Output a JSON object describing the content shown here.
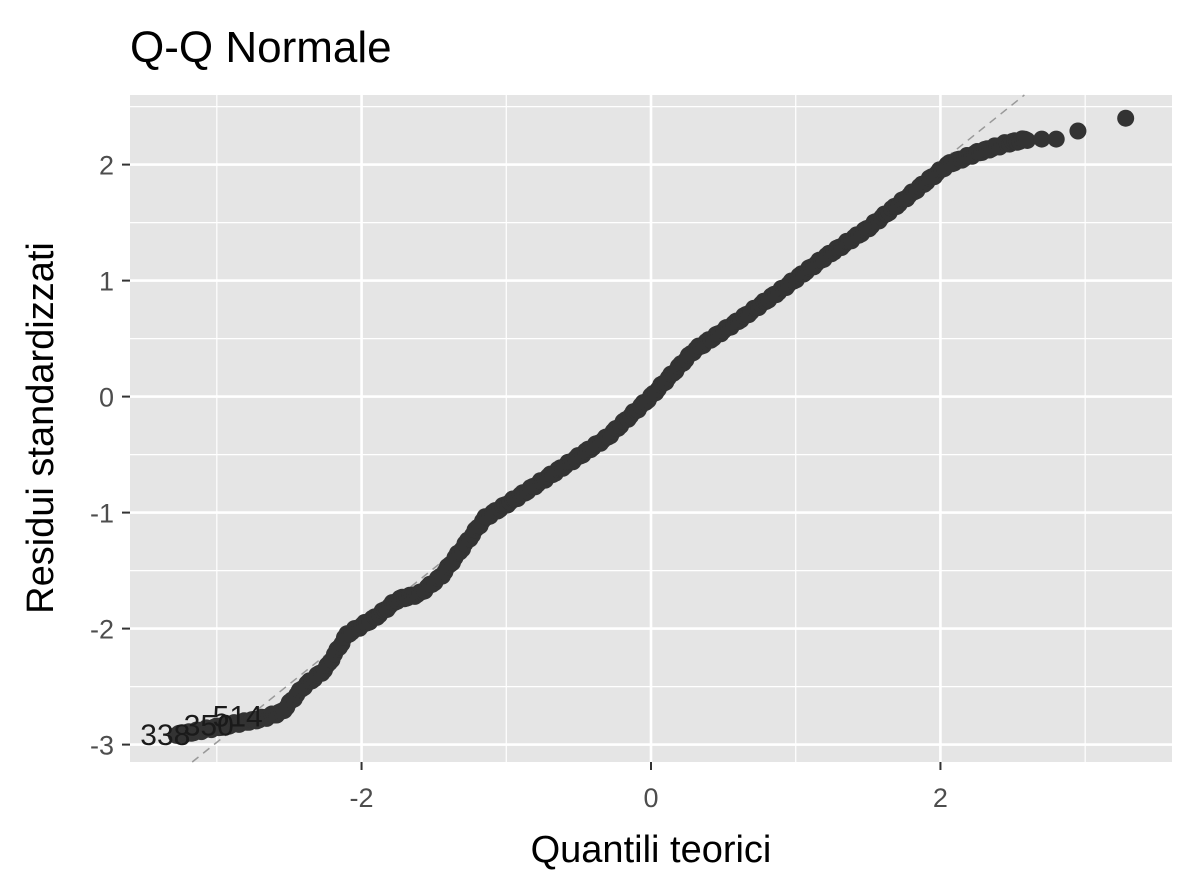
{
  "chart_data": {
    "type": "scatter",
    "title": "Q-Q Normale",
    "xlabel": "Quantili teorici",
    "ylabel": "Residui standardizzati",
    "xlim": [
      -3.6,
      3.6
    ],
    "ylim": [
      -3.15,
      2.6
    ],
    "x_ticks": [
      {
        "value": -2,
        "label": "-2"
      },
      {
        "value": 0,
        "label": "0"
      },
      {
        "value": 2,
        "label": "2"
      }
    ],
    "y_ticks": [
      {
        "value": -3,
        "label": "-3"
      },
      {
        "value": -2,
        "label": "-2"
      },
      {
        "value": -1,
        "label": "-1"
      },
      {
        "value": 0,
        "label": "0"
      },
      {
        "value": 1,
        "label": "1"
      },
      {
        "value": 2,
        "label": "2"
      }
    ],
    "grid": true,
    "reference_line": {
      "intercept": 0.02,
      "slope": 1.0,
      "style": "dashed"
    },
    "annotations": [
      {
        "text": "338",
        "x": -3.28,
        "y": -2.9
      },
      {
        "text": "350",
        "x": -2.98,
        "y": -2.82
      },
      {
        "text": "514",
        "x": -2.78,
        "y": -2.74
      }
    ],
    "curve_knots": [
      [
        -3.28,
        -2.92
      ],
      [
        -3.0,
        -2.85
      ],
      [
        -2.7,
        -2.78
      ],
      [
        -2.55,
        -2.72
      ],
      [
        -2.4,
        -2.5
      ],
      [
        -2.25,
        -2.35
      ],
      [
        -2.1,
        -2.05
      ],
      [
        -1.9,
        -1.9
      ],
      [
        -1.75,
        -1.75
      ],
      [
        -1.6,
        -1.7
      ],
      [
        -1.45,
        -1.55
      ],
      [
        -1.3,
        -1.3
      ],
      [
        -1.15,
        -1.05
      ],
      [
        -0.9,
        -0.85
      ],
      [
        -0.6,
        -0.6
      ],
      [
        -0.3,
        -0.35
      ],
      [
        0.0,
        0.0
      ],
      [
        0.3,
        0.4
      ],
      [
        0.6,
        0.65
      ],
      [
        0.9,
        0.92
      ],
      [
        1.2,
        1.2
      ],
      [
        1.5,
        1.45
      ],
      [
        1.8,
        1.75
      ],
      [
        2.05,
        2.0
      ],
      [
        2.25,
        2.1
      ],
      [
        2.45,
        2.18
      ],
      [
        2.6,
        2.22
      ]
    ],
    "outlier_points": [
      {
        "x": 2.7,
        "y": 2.22
      },
      {
        "x": 2.8,
        "y": 2.22
      },
      {
        "x": 2.95,
        "y": 2.29
      },
      {
        "x": 3.28,
        "y": 2.4
      }
    ],
    "colors": {
      "panel": "#e5e5e5",
      "grid": "#ffffff",
      "point": "#333333",
      "reference_line": "#999999",
      "tick_mark": "#333333"
    }
  }
}
